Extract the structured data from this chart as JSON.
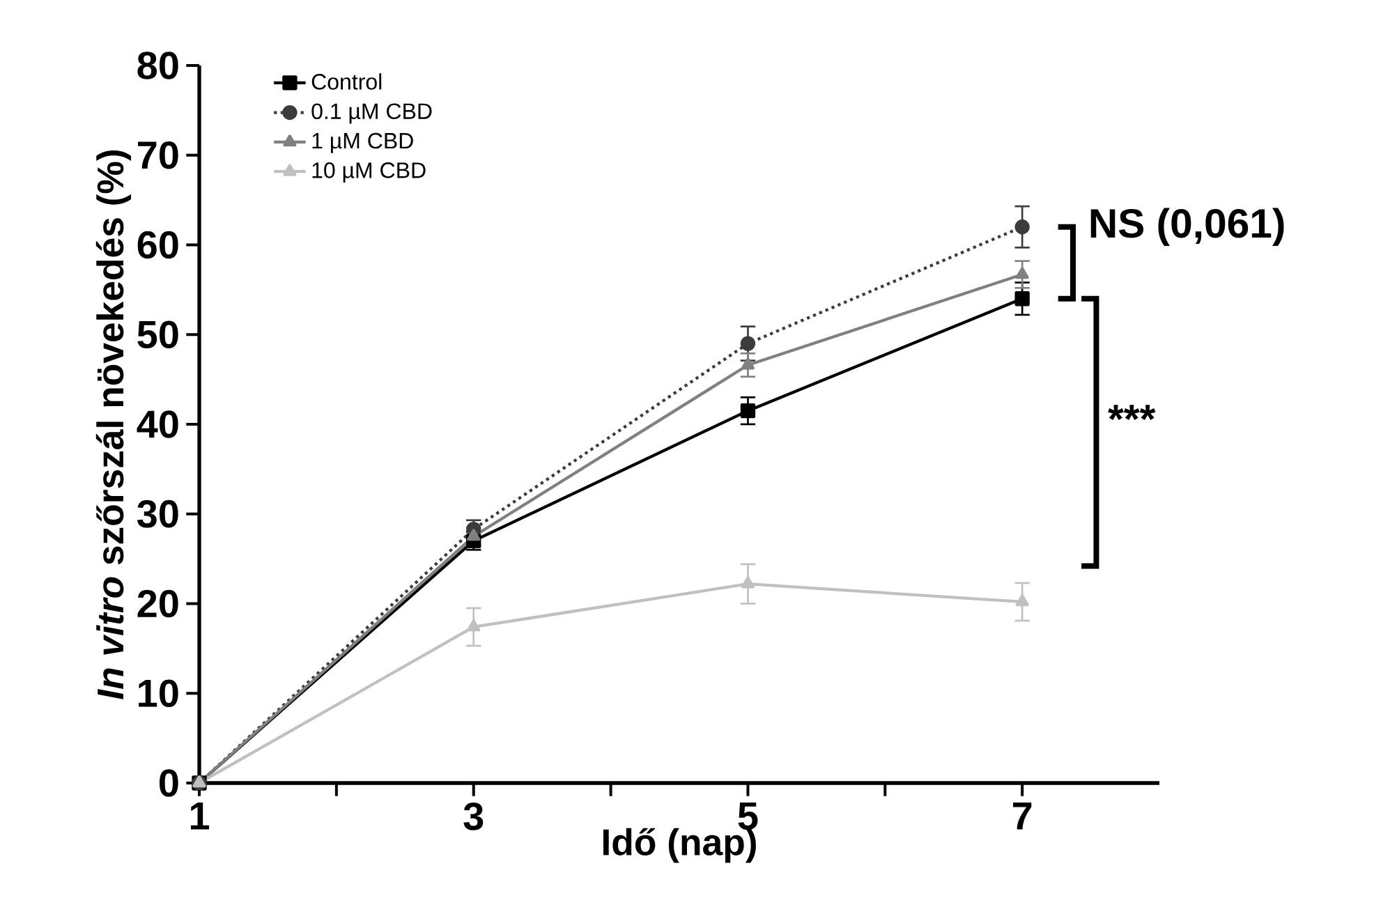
{
  "chart_data": {
    "type": "line",
    "xlabel": "Idő (nap)",
    "ylabel": "*In vitro* szőrszál növekedés (%)",
    "x": [
      1,
      3,
      5,
      7
    ],
    "series": [
      {
        "name": "Control",
        "color": "#000000",
        "marker": "square",
        "line_style": "solid",
        "values": [
          0,
          27,
          41.5,
          54
        ],
        "errors": [
          null,
          1,
          1.5,
          1.8
        ]
      },
      {
        "name": "0.1 µM CBD",
        "color": "#3c3c3c",
        "marker": "circle",
        "line_style": "dotted",
        "values": [
          0,
          28.3,
          49,
          62
        ],
        "errors": [
          null,
          1,
          1.9,
          2.3
        ]
      },
      {
        "name": "1 µM CBD",
        "color": "#808080",
        "marker": "triangle",
        "line_style": "solid",
        "values": [
          0,
          27.5,
          46.6,
          56.7
        ],
        "errors": [
          null,
          1,
          1.3,
          1.5
        ]
      },
      {
        "name": "10 µM CBD",
        "color": "#c0c0c0",
        "marker": "triangle",
        "line_style": "solid",
        "values": [
          0,
          17.4,
          22.2,
          20.2
        ],
        "errors": [
          null,
          2.1,
          2.2,
          2.1
        ]
      }
    ],
    "xlim": [
      1,
      8
    ],
    "ylim": [
      0,
      80
    ],
    "xticks": [
      1,
      {
        "value": 2,
        "label": null
      },
      3,
      {
        "value": 4,
        "label": null
      },
      5,
      {
        "value": 6,
        "label": null
      },
      7
    ],
    "yticks": [
      0,
      10,
      20,
      30,
      40,
      50,
      60,
      70,
      80
    ],
    "grid": false,
    "legend": "top left",
    "annotations": [
      "NS (0,061)",
      "***"
    ]
  }
}
